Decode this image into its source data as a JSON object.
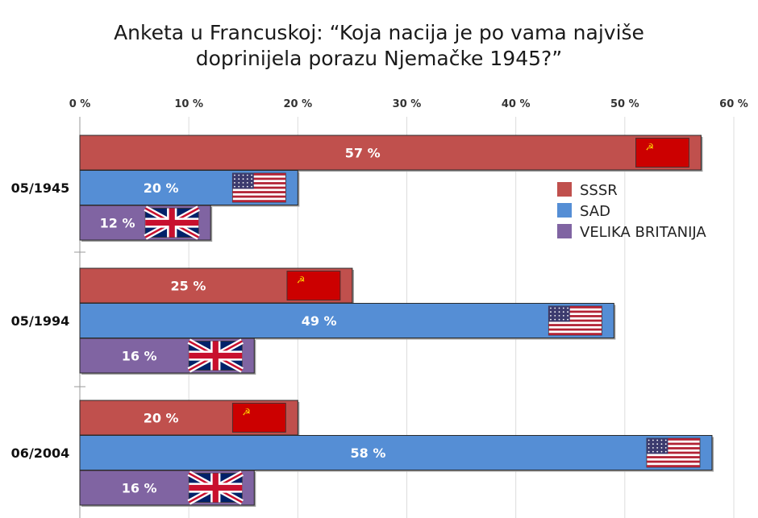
{
  "title_lines": [
    "Anketa u Francuskoj: “Koja nacija je po vama najviše",
    "doprinijela porazu Njemačke 1945?”"
  ],
  "chart_data": {
    "type": "bar",
    "orientation": "horizontal",
    "title": "Anketa u Francuskoj: “Koja nacija je po vama najviše doprinijela porazu Njemačke 1945?”",
    "xlabel": "",
    "ylabel": "",
    "xlim": [
      0,
      60
    ],
    "x_ticks": [
      0,
      10,
      20,
      30,
      40,
      50,
      60
    ],
    "x_tick_labels": [
      "0 %",
      "10 %",
      "20 %",
      "30 %",
      "40 %",
      "50 %",
      "60 %"
    ],
    "x_axis_position": "top",
    "grid": true,
    "categories": [
      "05/1945",
      "05/1994",
      "06/2004"
    ],
    "series": [
      {
        "name": "SSSR",
        "color": "#c0504d",
        "flag": "ussr-flag-icon",
        "values": [
          57,
          25,
          20
        ],
        "labels": [
          "57 %",
          "25 %",
          "20 %"
        ]
      },
      {
        "name": "SAD",
        "color": "#558ed5",
        "flag": "usa-flag-icon",
        "values": [
          20,
          49,
          58
        ],
        "labels": [
          "20 %",
          "49 %",
          "58 %"
        ]
      },
      {
        "name": "VELIKA BRITANIJA",
        "color": "#8064a2",
        "flag": "uk-flag-icon",
        "values": [
          12,
          16,
          16
        ],
        "labels": [
          "12 %",
          "16 %",
          "16 %"
        ]
      }
    ],
    "legend_position": "right"
  }
}
